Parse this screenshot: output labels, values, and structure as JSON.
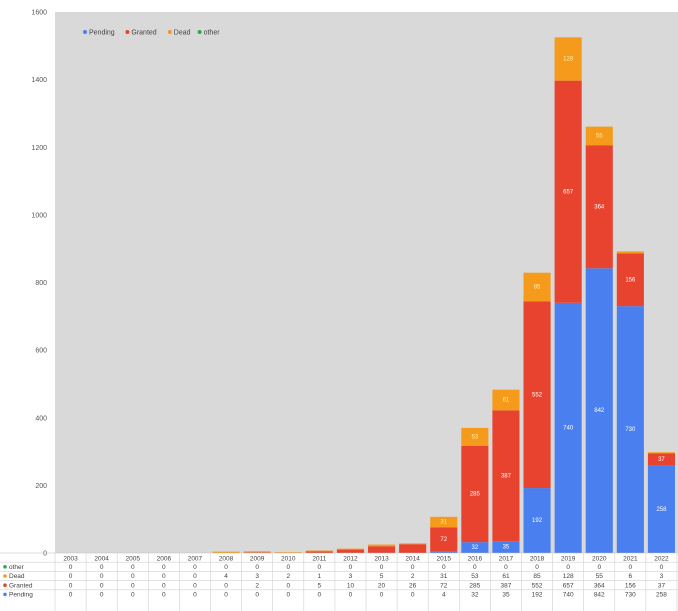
{
  "chart_data": {
    "type": "bar",
    "stacked": true,
    "categories": [
      "2003",
      "2004",
      "2005",
      "2006",
      "2007",
      "2008",
      "2009",
      "2010",
      "2011",
      "2012",
      "2013",
      "2014",
      "2015",
      "2016",
      "2017",
      "2018",
      "2019",
      "2020",
      "2021",
      "2022"
    ],
    "series": [
      {
        "name": "Pending",
        "color": "#4a7ff0",
        "values": [
          0,
          0,
          0,
          0,
          0,
          0,
          0,
          0,
          0,
          0,
          0,
          0,
          4,
          32,
          35,
          192,
          740,
          842,
          730,
          258
        ]
      },
      {
        "name": "Granted",
        "color": "#e8432f",
        "values": [
          0,
          0,
          0,
          0,
          0,
          0,
          2,
          0,
          5,
          10,
          20,
          26,
          72,
          285,
          387,
          552,
          657,
          364,
          156,
          37
        ]
      },
      {
        "name": "Dead",
        "color": "#f59a1b",
        "values": [
          0,
          0,
          0,
          0,
          0,
          4,
          3,
          2,
          1,
          3,
          5,
          2,
          31,
          53,
          61,
          85,
          128,
          55,
          6,
          3
        ]
      },
      {
        "name": "other",
        "color": "#2ea84a",
        "values": [
          0,
          0,
          0,
          0,
          0,
          0,
          0,
          0,
          0,
          0,
          0,
          0,
          0,
          0,
          0,
          0,
          0,
          0,
          0,
          0
        ]
      }
    ],
    "legend_order": [
      "Pending",
      "Granted",
      "Dead",
      "other"
    ],
    "table_row_order": [
      "other",
      "Dead",
      "Granted",
      "Pending"
    ],
    "y_ticks": [
      0,
      200,
      400,
      600,
      800,
      1000,
      1200,
      1400,
      1600
    ],
    "ylim": [
      0,
      1600
    ],
    "legend_position": "top-left",
    "grid": false,
    "data_table": true
  }
}
